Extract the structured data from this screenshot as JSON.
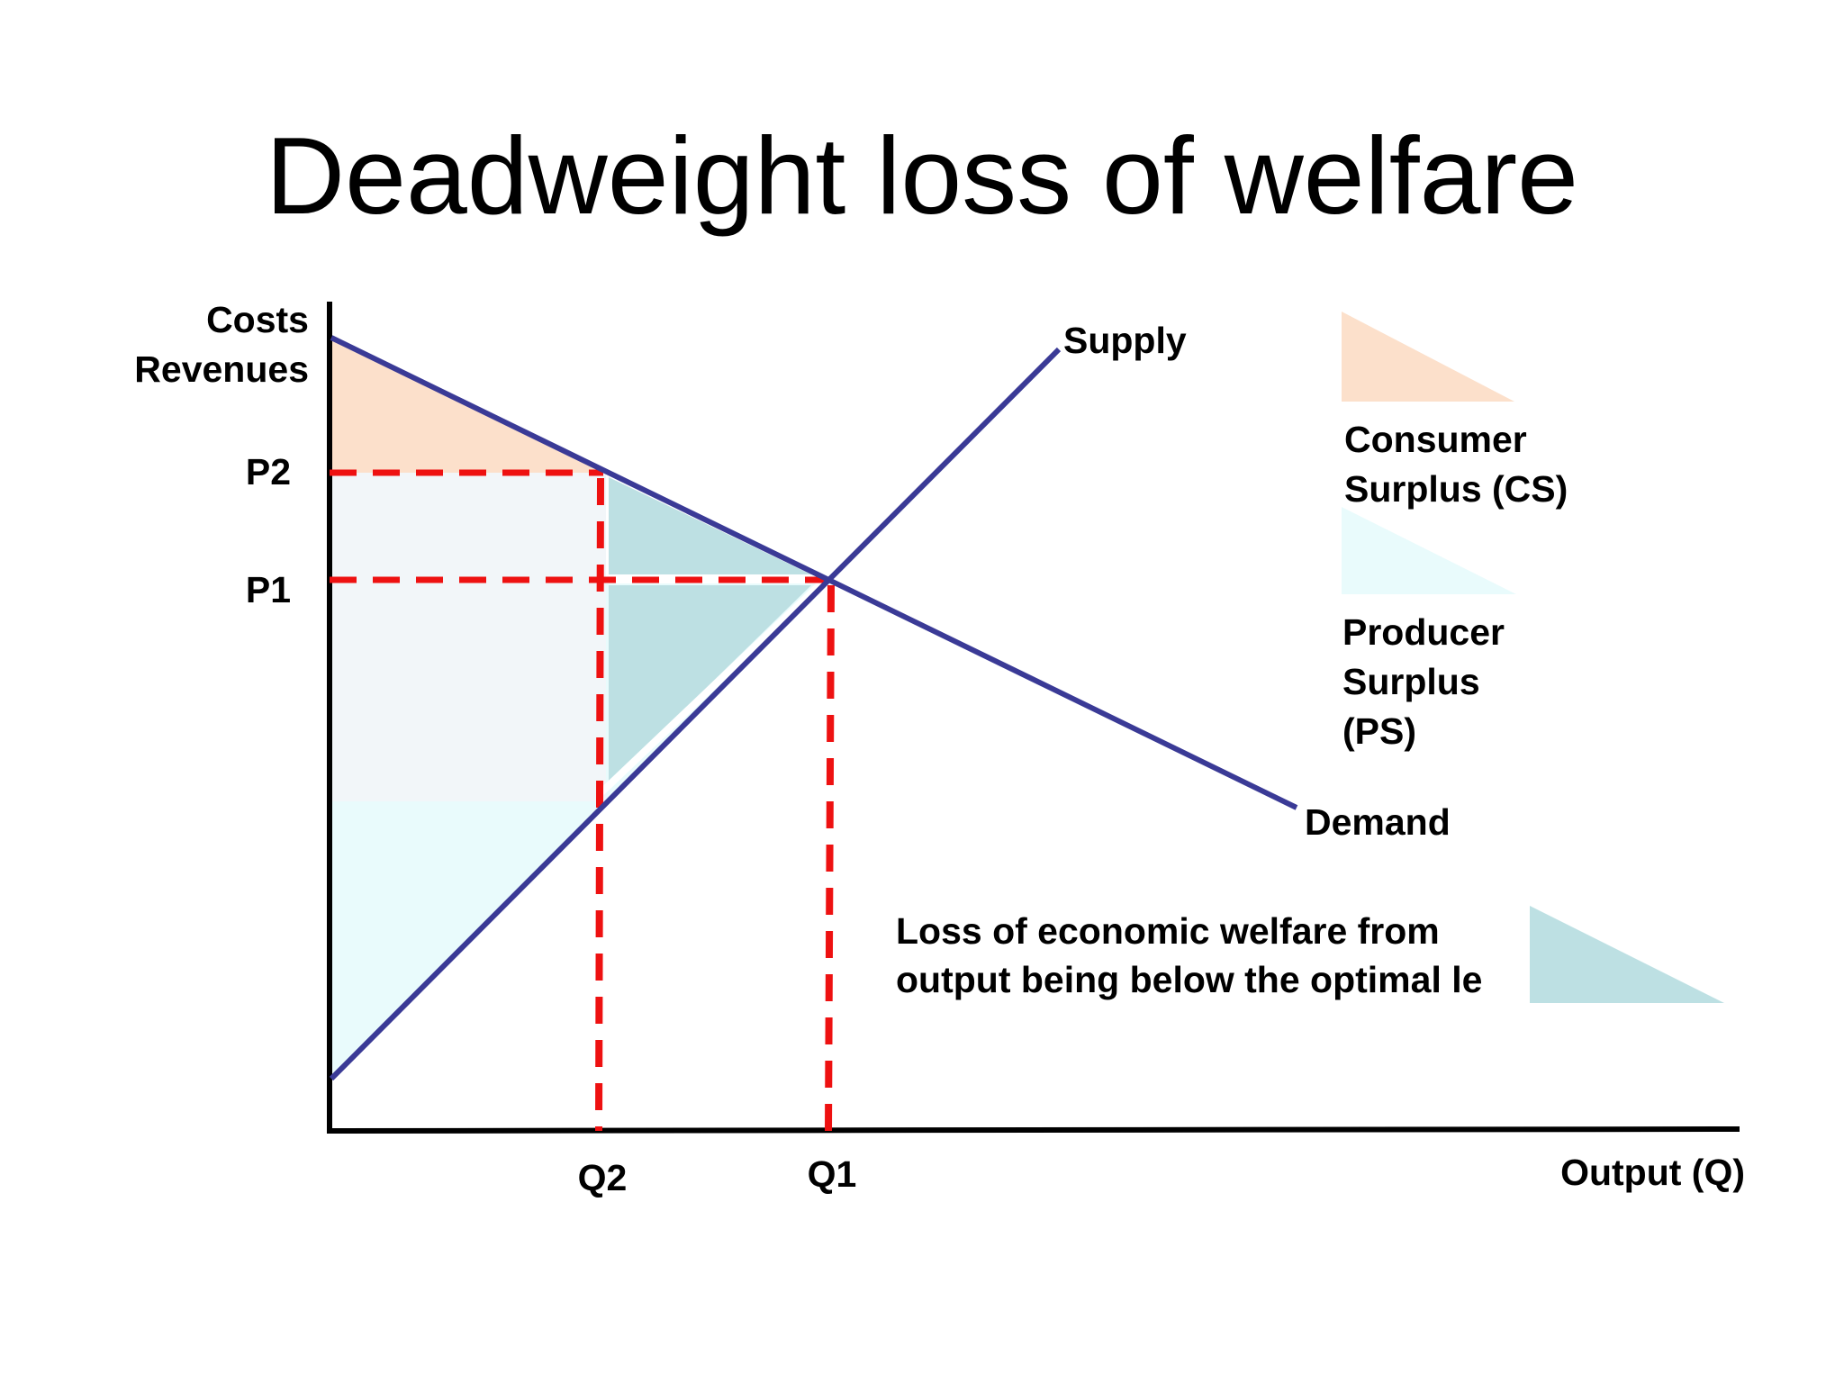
{
  "title": "Deadweight loss of welfare",
  "axes": {
    "y_label_line1": "Costs",
    "y_label_line2": "Revenues",
    "x_label": "Output (Q)"
  },
  "price_labels": {
    "p2": "P2",
    "p1": "P1"
  },
  "quantity_labels": {
    "q2": "Q2",
    "q1": "Q1"
  },
  "curves": {
    "supply": "Supply",
    "demand": "Demand"
  },
  "legend": {
    "consumer_surplus_line1": "Consumer",
    "consumer_surplus_line2": "Surplus (CS)",
    "producer_surplus_line1": "Producer",
    "producer_surplus_line2": "Surplus",
    "producer_surplus_line3": "(PS)",
    "deadweight_line1": "Loss of economic welfare from",
    "deadweight_line2": "output being below the optimal le"
  },
  "colors": {
    "curve": "#3a3a96",
    "guide": "#ee1111",
    "consumer_surplus": "#fce0cb",
    "producer_surplus": "#e9fbfc",
    "producer_surplus_shaded": "#f2f6f9",
    "deadweight_loss": "#bde0e3",
    "axis": "#000000"
  }
}
